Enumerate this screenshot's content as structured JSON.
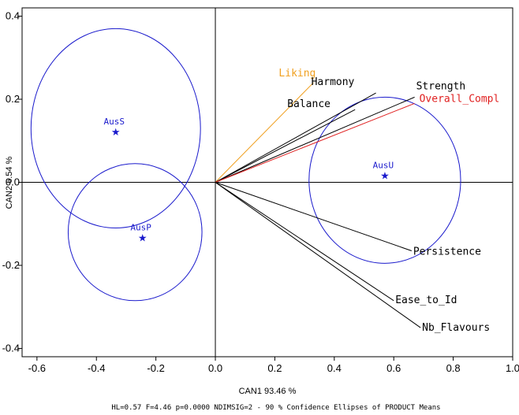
{
  "chart_data": {
    "type": "scatter",
    "subtype": "canonical-biplot",
    "xlabel": "CAN1 93.46 %",
    "ylabel": "CAN2   6.54 %",
    "footnote": "HL=0.57   F=4.46   p=0.0000  NDIMSIG=2  - 90 % Confidence Ellipses of PRODUCT Means",
    "xlim": [
      -0.65,
      1.0
    ],
    "ylim": [
      -0.42,
      0.42
    ],
    "xticks": [
      -0.6,
      -0.4,
      -0.2,
      0.0,
      0.2,
      0.4,
      0.6,
      0.8,
      1.0
    ],
    "yticks": [
      -0.4,
      -0.2,
      0.0,
      0.2,
      0.4
    ],
    "xtick_labels": [
      "-0.6",
      "-0.4",
      "-0.2",
      "0.0",
      "0.2",
      "0.4",
      "0.6",
      "0.8",
      "1.0"
    ],
    "ytick_labels": [
      "-0.4",
      "-0.2",
      "0.0",
      "0.2",
      "0.4"
    ],
    "grid": false,
    "reference_lines": {
      "x": 0.0,
      "y": 0.0
    },
    "colors": {
      "points": "#1a1acc",
      "ellipses": "#1a1acc",
      "vectors": "#000000",
      "liking": "#f0a020",
      "overall": "#e02020"
    },
    "products": [
      {
        "name": "AusS",
        "x": -0.335,
        "y": 0.12,
        "ellipse": {
          "cx": -0.335,
          "cy": 0.13,
          "rx": 0.285,
          "ry": 0.24
        }
      },
      {
        "name": "AusP",
        "x": -0.245,
        "y": -0.135,
        "ellipse": {
          "cx": -0.27,
          "cy": -0.12,
          "rx": 0.225,
          "ry": 0.165
        }
      },
      {
        "name": "AusU",
        "x": 0.57,
        "y": 0.015,
        "ellipse": {
          "cx": 0.57,
          "cy": 0.005,
          "rx": 0.255,
          "ry": 0.2
        }
      }
    ],
    "vectors": [
      {
        "name": "Liking",
        "x": 0.33,
        "y": 0.24,
        "color": "#f0a020"
      },
      {
        "name": "Harmony",
        "x": 0.54,
        "y": 0.215,
        "color": "#000000"
      },
      {
        "name": "Strength",
        "x": 0.67,
        "y": 0.205,
        "color": "#000000"
      },
      {
        "name": "Balance",
        "x": 0.47,
        "y": 0.175,
        "color": "#000000"
      },
      {
        "name": "Overall_Compl",
        "x": 0.67,
        "y": 0.19,
        "color": "#e02020"
      },
      {
        "name": "Persistence",
        "x": 0.66,
        "y": -0.165,
        "color": "#000000"
      },
      {
        "name": "Ease_to_Id",
        "x": 0.6,
        "y": -0.285,
        "color": "#000000"
      },
      {
        "name": "Nb_Flavours",
        "x": 0.69,
        "y": -0.35,
        "color": "#000000"
      }
    ]
  }
}
